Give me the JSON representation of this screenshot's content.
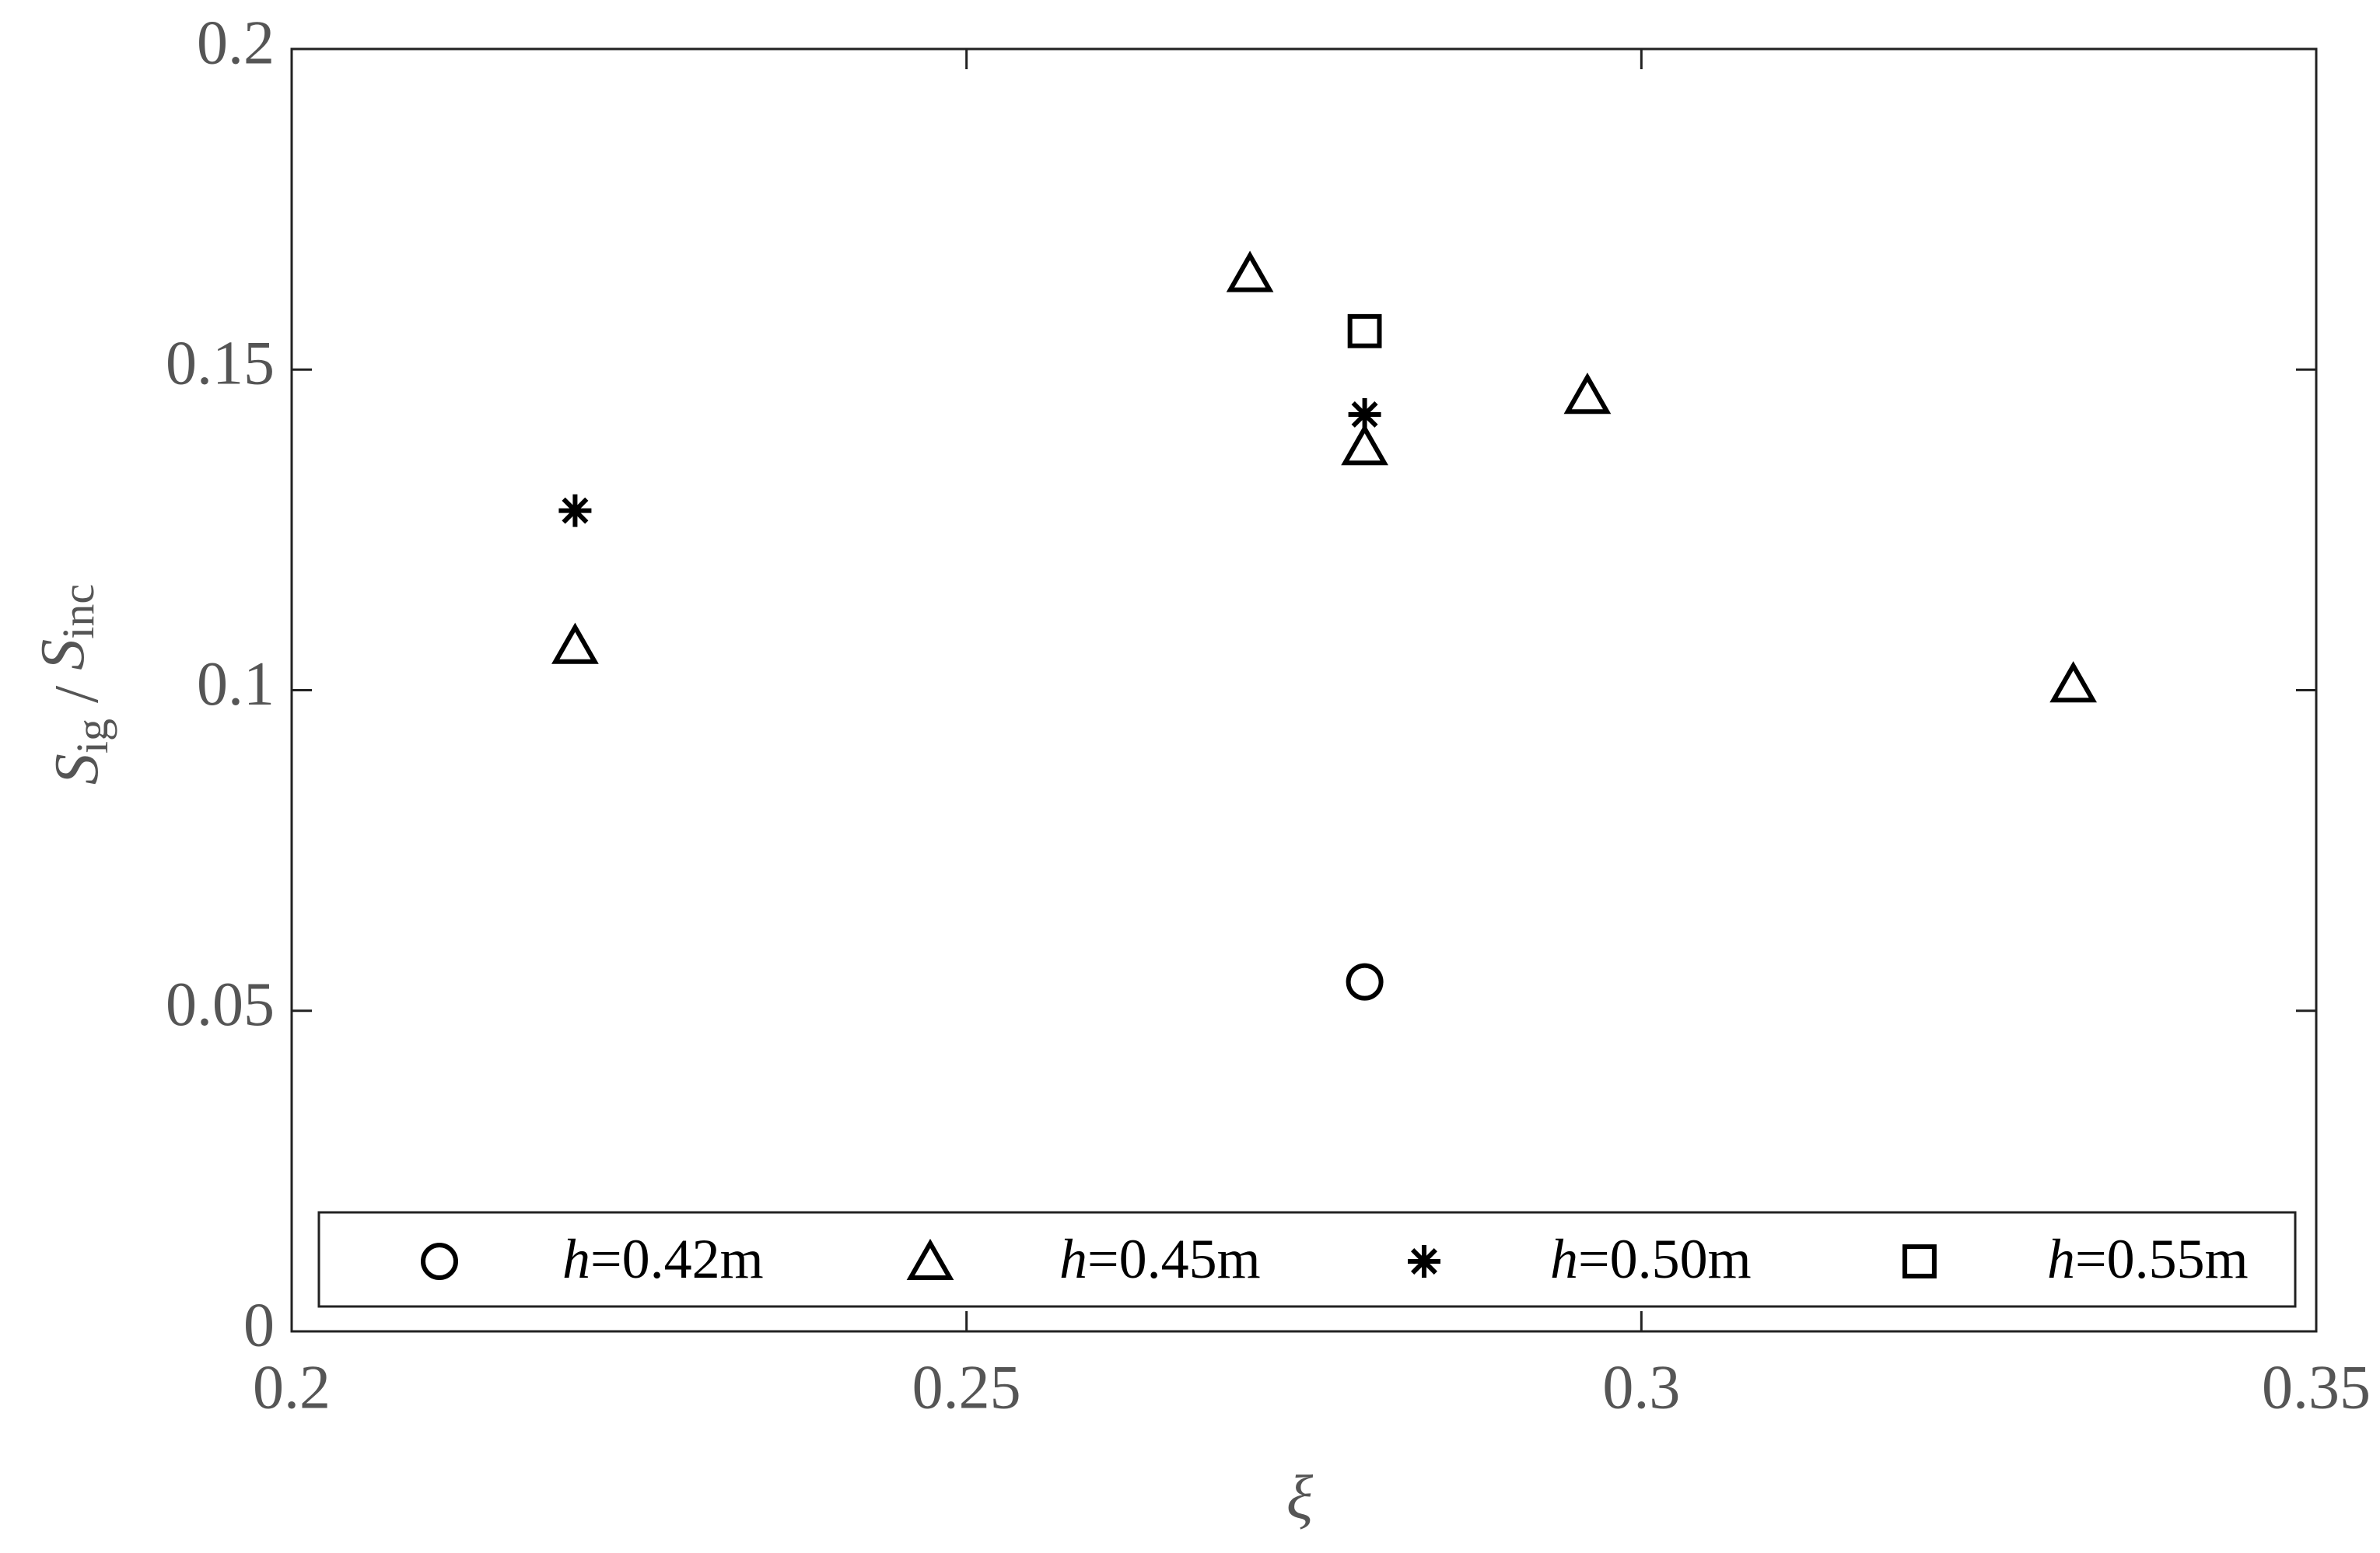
{
  "chart_data": {
    "type": "scatter",
    "xlabel": "ξ",
    "ylabel": [
      "S",
      "ig",
      " / ",
      "S",
      "inc"
    ],
    "xlim": [
      0.2,
      0.35
    ],
    "xticks": [
      0.2,
      0.25,
      0.3,
      0.35
    ],
    "ylim": [
      0,
      0.2
    ],
    "yticks": [
      0,
      0.05,
      0.1,
      0.15,
      0.2
    ],
    "grid": false,
    "legend": "bottom",
    "series": [
      {
        "name": "h=0.42m",
        "marker": "circle",
        "color": "#000000",
        "x": [
          0.2795
        ],
        "values": [
          0.0545
        ]
      },
      {
        "name": "h=0.45m",
        "marker": "triangle",
        "color": "#000000",
        "x": [
          0.221,
          0.271,
          0.2795,
          0.296,
          0.332
        ],
        "values": [
          0.107,
          0.165,
          0.138,
          0.146,
          0.101
        ]
      },
      {
        "name": "h=0.50m",
        "marker": "star",
        "color": "#000000",
        "x": [
          0.221,
          0.2795
        ],
        "values": [
          0.128,
          0.143
        ]
      },
      {
        "name": "h=0.55m",
        "marker": "square",
        "color": "#000000",
        "x": [
          0.2795
        ],
        "values": [
          0.156
        ]
      }
    ]
  }
}
